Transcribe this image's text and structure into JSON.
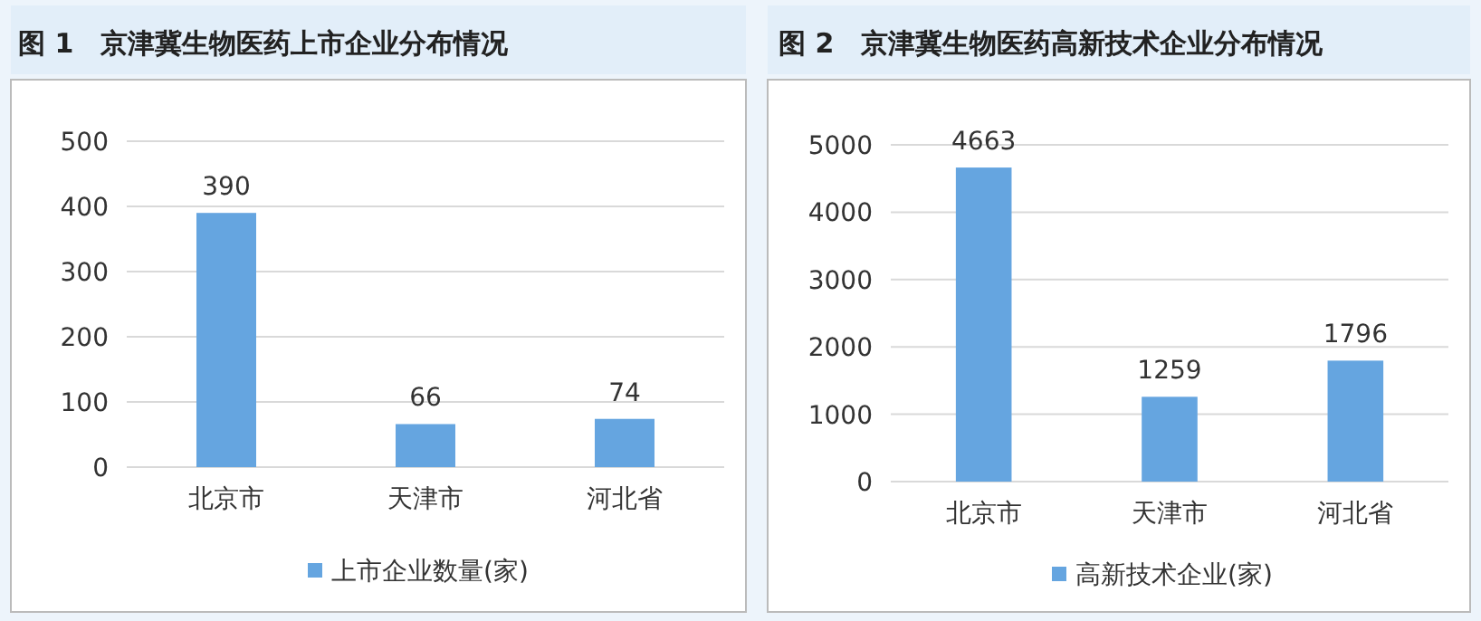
{
  "chart_data": [
    {
      "type": "bar",
      "title": "图 1　京津冀生物医药上市企业分布情况",
      "categories": [
        "北京市",
        "天津市",
        "河北省"
      ],
      "series": [
        {
          "name": "上市企业数量(家)",
          "color": "#65a5e0",
          "values": [
            390,
            66,
            74
          ]
        }
      ],
      "ylim": [
        0,
        500
      ],
      "yticks": [
        0,
        100,
        200,
        300,
        400,
        500
      ],
      "grid": "y",
      "legend": "bottom",
      "data_labels": true
    },
    {
      "type": "bar",
      "title": "图 2　京津冀生物医药高新技术企业分布情况",
      "categories": [
        "北京市",
        "天津市",
        "河北省"
      ],
      "series": [
        {
          "name": "高新技术企业(家)",
          "color": "#65a5e0",
          "values": [
            4663,
            1259,
            1796
          ]
        }
      ],
      "ylim": [
        0,
        5000
      ],
      "yticks": [
        0,
        1000,
        2000,
        3000,
        4000,
        5000
      ],
      "grid": "y",
      "legend": "bottom",
      "data_labels": true
    }
  ]
}
